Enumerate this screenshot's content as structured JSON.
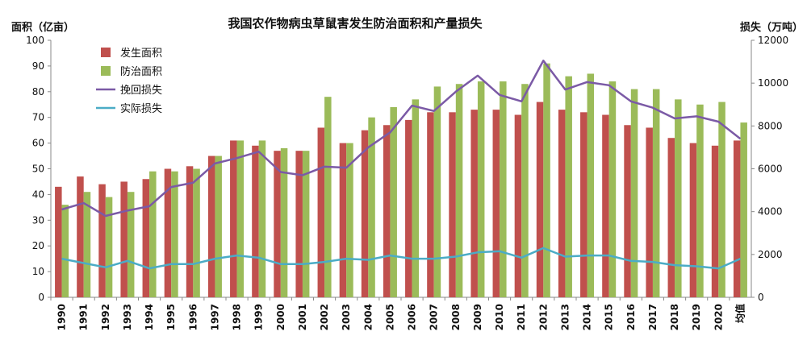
{
  "chart_data": {
    "type": "bar",
    "title": "我国农作物病虫草鼠害发生防治面积和产量损失",
    "ylabel_left": "面积（亿亩）",
    "ylabel_right": "损失（万吨）",
    "ylim_left": [
      0,
      100
    ],
    "ylim_right": [
      0,
      12000
    ],
    "yticks_left": [
      "0",
      "10",
      "20",
      "30",
      "40",
      "50",
      "60",
      "70",
      "80",
      "90",
      "100"
    ],
    "yticks_right": [
      "0",
      "2000",
      "4000",
      "6000",
      "8000",
      "10000",
      "12000"
    ],
    "categories": [
      "1990",
      "1991",
      "1992",
      "1993",
      "1994",
      "1995",
      "1996",
      "1997",
      "1998",
      "1999",
      "2000",
      "2001",
      "2002",
      "2003",
      "2004",
      "2005",
      "2006",
      "2007",
      "2008",
      "2009",
      "2010",
      "2011",
      "2012",
      "2013",
      "2014",
      "2015",
      "2016",
      "2017",
      "2018",
      "2019",
      "2020",
      "均值"
    ],
    "legend_position": "top-left",
    "grid": false,
    "series": [
      {
        "name": "发生面积",
        "kind": "bar",
        "axis": "left",
        "color": "#c0504d",
        "values": [
          43,
          47,
          44,
          45,
          46,
          50,
          51,
          55,
          61,
          59,
          57,
          57,
          66,
          60,
          65,
          67,
          69,
          72,
          72,
          73,
          73,
          71,
          76,
          73,
          72,
          71,
          67,
          66,
          62,
          60,
          59,
          61
        ]
      },
      {
        "name": "防治面积",
        "kind": "bar",
        "axis": "left",
        "color": "#9bbb59",
        "values": [
          36,
          41,
          39,
          41,
          49,
          49,
          50,
          55,
          61,
          61,
          58,
          57,
          78,
          60,
          70,
          74,
          77,
          82,
          83,
          84,
          84,
          83,
          91,
          86,
          87,
          84,
          81,
          81,
          77,
          75,
          76,
          68
        ]
      },
      {
        "name": "挽回损失",
        "kind": "line",
        "axis": "right",
        "color": "#7b5aa6",
        "values": [
          4100,
          4400,
          3800,
          4050,
          4250,
          5150,
          5350,
          6250,
          6500,
          6800,
          5850,
          5700,
          6100,
          6050,
          7000,
          7700,
          8950,
          8700,
          9600,
          10350,
          9450,
          9150,
          11050,
          9700,
          10050,
          9900,
          9150,
          8850,
          8350,
          8450,
          8200,
          7400
        ]
      },
      {
        "name": "实际损失",
        "kind": "line",
        "axis": "right",
        "color": "#4bacc6",
        "values": [
          1800,
          1600,
          1400,
          1700,
          1350,
          1550,
          1550,
          1800,
          1950,
          1850,
          1550,
          1550,
          1650,
          1800,
          1750,
          1950,
          1800,
          1800,
          1900,
          2100,
          2150,
          1850,
          2300,
          1900,
          1950,
          1950,
          1700,
          1650,
          1500,
          1450,
          1350,
          1800
        ]
      }
    ]
  }
}
